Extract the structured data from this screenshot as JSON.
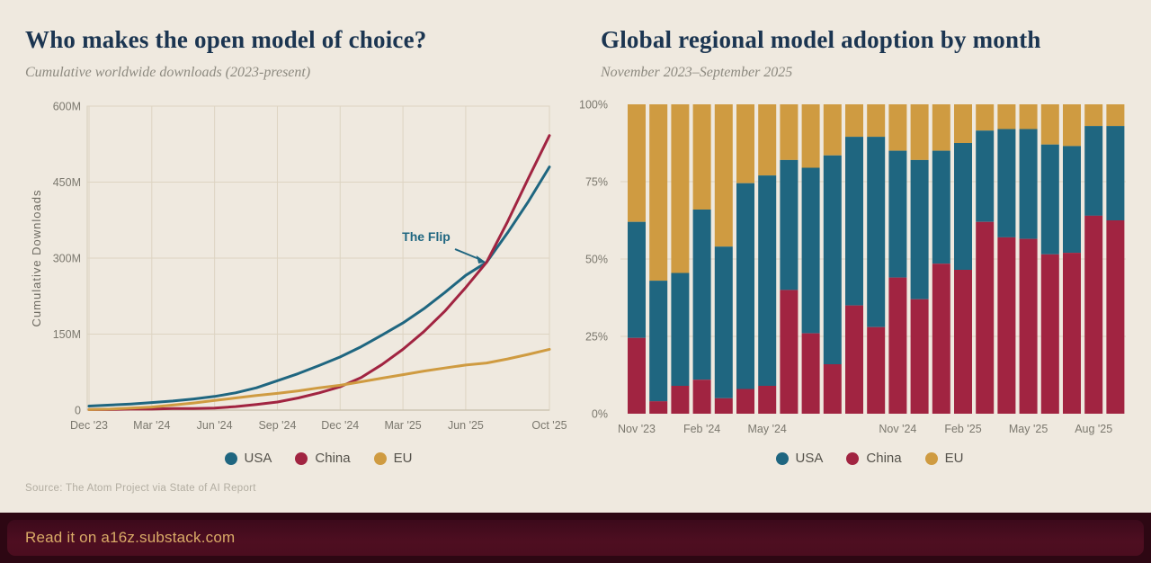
{
  "colors": {
    "background": "#EFE9DF",
    "navy_title": "#1B3551",
    "subtitle_gray": "#8D8A80",
    "axis_text": "#7B786E",
    "legend_text": "#55524B",
    "grid": "#DDD4C2",
    "frame": "#D6CDBA",
    "teal_usa": "#1F6680",
    "crimson_china": "#A12441",
    "gold_eu": "#CF9B41",
    "source_text": "#B2ADA1",
    "footer_bg": "#2D0713",
    "footer_panel": "#4E0E21",
    "footer_text": "#D9AB67"
  },
  "left": {
    "title": "Who makes the open model of choice?",
    "subtitle": "Cumulative worldwide downloads (2023-present)",
    "legend_order": [
      "USA",
      "China",
      "EU"
    ]
  },
  "right": {
    "title": "Global regional model adoption by month",
    "subtitle": "November 2023–September 2025",
    "legend_order": [
      "USA",
      "China",
      "EU"
    ]
  },
  "source": "Source: The Atom Project via State of AI Report",
  "footer": {
    "text": "Read it on a16z.substack.com"
  },
  "chart_data": [
    {
      "type": "line",
      "title": "Who makes the open model of choice?",
      "subtitle": "Cumulative worldwide downloads (2023-present)",
      "ylabel": "Cumulative  Downloads",
      "ylim": [
        0,
        600
      ],
      "grid": true,
      "legend_position": "bottom",
      "x_months": [
        "Dec '23",
        "Jan '24",
        "Feb '24",
        "Mar '24",
        "Apr '24",
        "May '24",
        "Jun '24",
        "Jul '24",
        "Aug '24",
        "Sep '24",
        "Oct '24",
        "Nov '24",
        "Dec '24",
        "Jan '25",
        "Feb '25",
        "Mar '25",
        "Apr '25",
        "May '25",
        "Jun '25",
        "Jul '25",
        "Aug '25",
        "Sep '25",
        "Oct '25"
      ],
      "x_tick_indices": [
        0,
        3,
        6,
        9,
        12,
        15,
        18,
        22
      ],
      "x_tick_labels": [
        "Dec '23",
        "Mar '24",
        "Jun '24",
        "Sep '24",
        "Dec '24",
        "Mar '25",
        "Jun '25",
        "Oct '25"
      ],
      "y_ticks": [
        {
          "v": 0,
          "label": "0"
        },
        {
          "v": 150,
          "label": "150M"
        },
        {
          "v": 300,
          "label": "300M"
        },
        {
          "v": 450,
          "label": "450M"
        },
        {
          "v": 600,
          "label": "600M"
        }
      ],
      "series": [
        {
          "name": "USA",
          "color": "#1F6680",
          "values": [
            8,
            10,
            12,
            15,
            18,
            22,
            27,
            34,
            44,
            58,
            72,
            88,
            105,
            125,
            148,
            172,
            200,
            232,
            266,
            292,
            350,
            412,
            480
          ]
        },
        {
          "name": "China",
          "color": "#A12441",
          "values": [
            1,
            1,
            2,
            2,
            3,
            3,
            4,
            7,
            11,
            16,
            24,
            34,
            46,
            64,
            90,
            120,
            155,
            195,
            242,
            292,
            372,
            458,
            542
          ]
        },
        {
          "name": "EU",
          "color": "#CF9B41",
          "values": [
            1,
            2,
            4,
            6,
            10,
            14,
            19,
            24,
            29,
            33,
            38,
            44,
            49,
            56,
            63,
            70,
            77,
            83,
            89,
            93,
            101,
            110,
            120
          ]
        }
      ],
      "annotation": {
        "text": "The Flip",
        "x_index": 19,
        "value": 292
      }
    },
    {
      "type": "bar",
      "subtype": "stacked-100-percent",
      "title": "Global regional model adoption by month",
      "subtitle": "November 2023–September 2025",
      "ylim": [
        0,
        100
      ],
      "grid": true,
      "legend_position": "bottom",
      "categories": [
        "Nov '23",
        "Dec '23",
        "Jan '24",
        "Feb '24",
        "Mar '24",
        "Apr '24",
        "May '24",
        "Jun '24",
        "Jul '24",
        "Aug '24",
        "Sep '24",
        "Oct '24",
        "Nov '24",
        "Dec '24",
        "Jan '25",
        "Feb '25",
        "Mar '25",
        "Apr '25",
        "May '25",
        "Jun '25",
        "Jul '25",
        "Aug '25",
        "Sep '25"
      ],
      "x_tick_indices": [
        0,
        3,
        6,
        12,
        15,
        18,
        21
      ],
      "x_tick_labels": [
        "Nov '23",
        "Feb '24",
        "May '24",
        "Nov '24",
        "Feb '25",
        "May '25",
        "Aug '25"
      ],
      "y_ticks": [
        {
          "v": 0,
          "label": "0%"
        },
        {
          "v": 25,
          "label": "25%"
        },
        {
          "v": 50,
          "label": "50%"
        },
        {
          "v": 75,
          "label": "75%"
        },
        {
          "v": 100,
          "label": "100%"
        }
      ],
      "stack_order_bottom_to_top": [
        "China",
        "USA",
        "EU"
      ],
      "series": [
        {
          "name": "China",
          "color": "#A12441",
          "values": [
            24.5,
            4,
            9,
            11,
            5,
            8,
            9,
            40,
            26,
            16,
            35,
            28,
            44,
            37,
            48.5,
            46.5,
            62,
            57,
            56.5,
            51.5,
            52,
            64,
            62.5
          ]
        },
        {
          "name": "USA",
          "color": "#1F6680",
          "values": [
            37.5,
            39,
            36.5,
            55,
            49,
            66.5,
            68,
            42,
            53.5,
            67.5,
            54.5,
            61.5,
            41,
            45,
            36.5,
            41,
            29.5,
            35,
            35.5,
            35.5,
            34.5,
            29,
            30.5
          ]
        },
        {
          "name": "EU",
          "color": "#CF9B41",
          "values": [
            38,
            57,
            54.5,
            34,
            46,
            25.5,
            23,
            18,
            20.5,
            16.5,
            10.5,
            10.5,
            15,
            18,
            15,
            12.5,
            8.5,
            8,
            8,
            13,
            13.5,
            7,
            7
          ]
        }
      ]
    }
  ]
}
